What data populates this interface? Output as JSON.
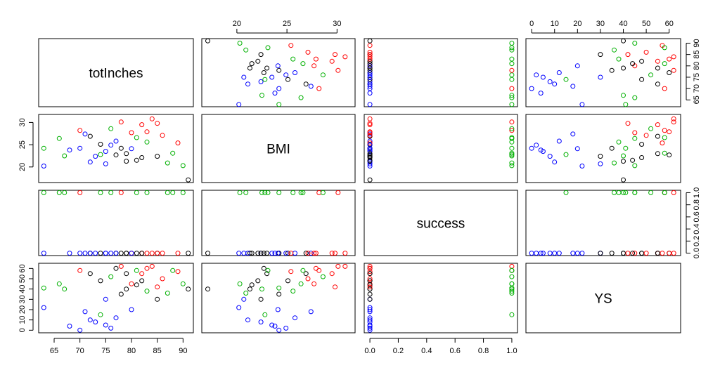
{
  "chart_data": {
    "type": "scatter",
    "layout": "scatterplot-matrix",
    "variables": [
      "totInches",
      "BMI",
      "success",
      "YS"
    ],
    "diagonal_labels": [
      "totInches",
      "BMI",
      "success",
      "YS"
    ],
    "point_colors": [
      "#000000",
      "#ff0000",
      "#00b000",
      "#0000ff"
    ],
    "groups": [
      "black",
      "red",
      "green",
      "blue"
    ],
    "axes": {
      "totInches": {
        "range": [
          62,
          92
        ],
        "ticks": [
          65,
          70,
          75,
          80,
          85,
          90
        ],
        "tick_labels": [
          "65",
          "70",
          "75",
          "80",
          "85",
          "90"
        ]
      },
      "BMI": {
        "range": [
          16.5,
          31.8
        ],
        "ticks": [
          20,
          25,
          30
        ],
        "tick_labels": [
          "20",
          "25",
          "30"
        ]
      },
      "success": {
        "range": [
          -0.04,
          1.04
        ],
        "ticks": [
          0.0,
          0.2,
          0.4,
          0.6,
          0.8,
          1.0
        ],
        "tick_labels": [
          "0.0",
          "0.2",
          "0.4",
          "0.6",
          "0.8",
          "1.0"
        ]
      },
      "YS": {
        "range": [
          -2.5,
          65
        ],
        "ticks": [
          0,
          10,
          20,
          30,
          40,
          50,
          60
        ],
        "tick_labels": [
          "0",
          "10",
          "20",
          "30",
          "40",
          "50",
          "60"
        ]
      }
    },
    "tick_placement": {
      "bottom": [
        "totInches",
        null,
        "success",
        null
      ],
      "top": [
        null,
        "BMI",
        null,
        "YS"
      ],
      "left": [
        null,
        "BMI",
        null,
        "YS"
      ],
      "right": [
        "totInches",
        null,
        "success",
        null
      ]
    },
    "points": [
      [
        63,
        24.2,
        1,
        41
      ],
      [
        63,
        20.2,
        0,
        22
      ],
      [
        66,
        26.4,
        1,
        45
      ],
      [
        67,
        22.5,
        1,
        40
      ],
      [
        70,
        28.2,
        1,
        58
      ],
      [
        70,
        24.2,
        0,
        0
      ],
      [
        71,
        27.4,
        0,
        18
      ],
      [
        72,
        26.9,
        0,
        55
      ],
      [
        73,
        22.4,
        0,
        8
      ],
      [
        74,
        25.1,
        0,
        48
      ],
      [
        75,
        20.7,
        0,
        30
      ],
      [
        75,
        23.5,
        0,
        5
      ],
      [
        76,
        28.6,
        1,
        52
      ],
      [
        77,
        22.7,
        0,
        60
      ],
      [
        77,
        25.8,
        0,
        12
      ],
      [
        78,
        24.2,
        0,
        35
      ],
      [
        78,
        30.1,
        1,
        62
      ],
      [
        79,
        21.3,
        0,
        40
      ],
      [
        80,
        27.7,
        0,
        45
      ],
      [
        80,
        24.1,
        0,
        20
      ],
      [
        81,
        26.6,
        1,
        58
      ],
      [
        82,
        29.5,
        0,
        55
      ],
      [
        82,
        22.1,
        0,
        48
      ],
      [
        83,
        25.6,
        1,
        38
      ],
      [
        84,
        30.8,
        0,
        62
      ],
      [
        85,
        22.4,
        0,
        30
      ],
      [
        86,
        27.1,
        0,
        50
      ],
      [
        87,
        20.9,
        1,
        36
      ],
      [
        89,
        25.4,
        0,
        57
      ],
      [
        90,
        20.3,
        1,
        45
      ],
      [
        91,
        17.1,
        0,
        40
      ],
      [
        68,
        23.8,
        0,
        4
      ],
      [
        72,
        21.1,
        0,
        10
      ],
      [
        74,
        22.8,
        1,
        15
      ],
      [
        76,
        24.9,
        0,
        2
      ],
      [
        79,
        23.0,
        0,
        55
      ],
      [
        81,
        21.5,
        0,
        44
      ],
      [
        83,
        27.9,
        0,
        60
      ],
      [
        85,
        29.8,
        0,
        42
      ],
      [
        88,
        23.1,
        1,
        58
      ]
    ],
    "point_groups": [
      2,
      3,
      2,
      2,
      1,
      3,
      3,
      0,
      3,
      0,
      3,
      3,
      2,
      0,
      3,
      0,
      1,
      0,
      1,
      3,
      2,
      1,
      0,
      2,
      1,
      0,
      1,
      2,
      1,
      2,
      0,
      3,
      3,
      2,
      3,
      0,
      0,
      1,
      1,
      2
    ]
  }
}
